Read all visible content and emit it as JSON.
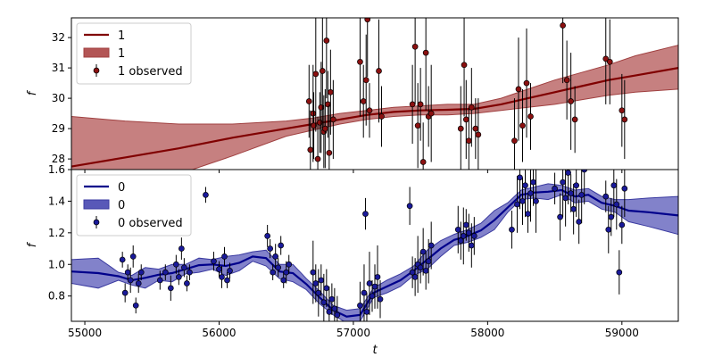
{
  "chart_data": [
    {
      "type": "line",
      "xlabel": "",
      "ylabel": "f",
      "xlim": [
        54900,
        59420
      ],
      "ylim": [
        27.65,
        32.65
      ],
      "yticks": [
        28,
        29,
        30,
        31,
        32
      ],
      "xticks": [
        55000,
        56000,
        57000,
        58000,
        59000
      ],
      "show_xtick_labels": false,
      "grid": false,
      "legend_position": "top-left",
      "colors": {
        "line": "#800000",
        "band_fill": "#b35555",
        "band_edge": "#a04040",
        "marker": "#8b1010"
      },
      "legend": [
        {
          "kind": "line",
          "label": "1"
        },
        {
          "kind": "band",
          "label": "1"
        },
        {
          "kind": "errorbar",
          "label": "1 observed"
        }
      ],
      "series": [
        {
          "name": "1",
          "kind": "line",
          "x": [
            54900,
            55300,
            55700,
            56100,
            56500,
            56700,
            56900,
            57100,
            57300,
            57500,
            57700,
            57900,
            58100,
            58300,
            58500,
            58700,
            58900,
            59100,
            59420
          ],
          "y": [
            27.75,
            28.05,
            28.35,
            28.7,
            29.0,
            29.15,
            29.3,
            29.45,
            29.55,
            29.6,
            29.62,
            29.65,
            29.8,
            30.0,
            30.2,
            30.4,
            30.6,
            30.75,
            31.0
          ]
        },
        {
          "name": "1",
          "kind": "band",
          "x": [
            54900,
            55300,
            55700,
            56100,
            56500,
            56700,
            56900,
            57100,
            57300,
            57500,
            57700,
            57900,
            58100,
            58300,
            58500,
            58700,
            58900,
            59100,
            59420
          ],
          "lower": [
            26.2,
            26.9,
            27.5,
            28.1,
            28.75,
            28.95,
            29.15,
            29.3,
            29.4,
            29.45,
            29.45,
            29.5,
            29.6,
            29.7,
            29.8,
            29.95,
            30.1,
            30.2,
            30.3
          ],
          "upper": [
            29.4,
            29.25,
            29.15,
            29.15,
            29.25,
            29.35,
            29.5,
            29.6,
            29.7,
            29.75,
            29.8,
            29.8,
            30.0,
            30.3,
            30.6,
            30.85,
            31.1,
            31.4,
            31.75
          ]
        },
        {
          "name": "1 observed",
          "kind": "errorbar",
          "x": [
            56670,
            56680,
            56700,
            56705,
            56720,
            56735,
            56750,
            56760,
            56770,
            56780,
            56790,
            56800,
            56810,
            56820,
            56830,
            56850,
            57050,
            57075,
            57095,
            57105,
            57120,
            57190,
            57210,
            57440,
            57460,
            57480,
            57500,
            57520,
            57540,
            57560,
            57580,
            57800,
            57825,
            57840,
            57860,
            57880,
            57910,
            57930,
            58200,
            58230,
            58260,
            58290,
            58320,
            58560,
            58590,
            58620,
            58650,
            58880,
            58910,
            59000,
            59020
          ],
          "y": [
            29.9,
            28.3,
            29.5,
            29.1,
            30.8,
            28.0,
            29.2,
            29.7,
            30.9,
            28.9,
            29.0,
            31.9,
            29.8,
            28.2,
            30.2,
            29.3,
            31.2,
            29.9,
            30.6,
            32.6,
            29.6,
            30.9,
            29.4,
            29.8,
            31.7,
            29.1,
            29.8,
            27.9,
            31.5,
            29.4,
            29.5,
            29.0,
            31.1,
            29.3,
            28.6,
            29.7,
            29.0,
            28.8,
            28.6,
            30.3,
            29.1,
            30.5,
            29.4,
            32.4,
            30.6,
            29.9,
            29.3,
            31.3,
            31.2,
            29.6,
            29.3
          ],
          "err": [
            1.2,
            1.3,
            1.6,
            1.1,
            1.9,
            1.4,
            1.0,
            1.5,
            2.1,
            1.2,
            1.3,
            1.9,
            1.1,
            1.6,
            1.4,
            1.3,
            1.8,
            1.2,
            1.5,
            1.9,
            0.9,
            1.7,
            1.0,
            1.3,
            1.9,
            1.4,
            1.2,
            1.3,
            1.9,
            1.0,
            1.6,
            1.4,
            1.7,
            1.3,
            1.1,
            1.3,
            1.0,
            1.2,
            1.4,
            1.7,
            1.2,
            1.8,
            1.1,
            1.9,
            1.3,
            1.6,
            1.1,
            1.5,
            1.4,
            1.2,
            1.3
          ]
        }
      ]
    },
    {
      "type": "line",
      "xlabel": "t",
      "ylabel": "f",
      "xlim": [
        54900,
        59420
      ],
      "ylim": [
        0.64,
        1.6
      ],
      "yticks": [
        0.8,
        1.0,
        1.2,
        1.4,
        1.6
      ],
      "xticks": [
        55000,
        56000,
        57000,
        58000,
        59000
      ],
      "xtick_labels": [
        "55000",
        "56000",
        "57000",
        "58000",
        "59000"
      ],
      "ytick_labels": [
        "0.8",
        "1.0",
        "1.2",
        "1.4",
        "1.6"
      ],
      "ytick_labels_top": [
        "28",
        "29",
        "30",
        "31",
        "32"
      ],
      "grid": false,
      "legend_position": "top-left",
      "colors": {
        "line": "#00008b",
        "band_fill": "#5858b8",
        "band_edge": "#3a3aa0",
        "marker": "#1a1a9a"
      },
      "legend": [
        {
          "kind": "line",
          "label": "0"
        },
        {
          "kind": "band",
          "label": "0"
        },
        {
          "kind": "errorbar",
          "label": "0 observed"
        }
      ],
      "series": [
        {
          "name": "0",
          "kind": "line",
          "x": [
            54900,
            55100,
            55250,
            55350,
            55450,
            55550,
            55650,
            55750,
            55850,
            55950,
            56050,
            56150,
            56250,
            56350,
            56450,
            56550,
            56650,
            56750,
            56850,
            56950,
            57050,
            57150,
            57250,
            57350,
            57450,
            57550,
            57650,
            57750,
            57850,
            57950,
            58050,
            58150,
            58250,
            58350,
            58450,
            58550,
            58650,
            58750,
            58850,
            58950,
            59050,
            59200,
            59420
          ],
          "y": [
            0.955,
            0.945,
            0.925,
            0.9,
            0.915,
            0.935,
            0.945,
            0.97,
            0.995,
            1.0,
            0.99,
            1.01,
            1.05,
            1.04,
            0.955,
            0.945,
            0.875,
            0.79,
            0.71,
            0.67,
            0.68,
            0.82,
            0.86,
            0.9,
            0.96,
            1.03,
            1.1,
            1.155,
            1.18,
            1.215,
            1.28,
            1.36,
            1.44,
            1.455,
            1.46,
            1.47,
            1.43,
            1.44,
            1.39,
            1.37,
            1.34,
            1.33,
            1.31
          ]
        },
        {
          "name": "0",
          "kind": "band",
          "x": [
            54900,
            55100,
            55250,
            55350,
            55450,
            55550,
            55650,
            55750,
            55850,
            55950,
            56050,
            56150,
            56250,
            56350,
            56450,
            56550,
            56650,
            56750,
            56850,
            56950,
            57050,
            57150,
            57250,
            57350,
            57450,
            57550,
            57650,
            57750,
            57850,
            57950,
            58050,
            58150,
            58250,
            58350,
            58450,
            58550,
            58650,
            58750,
            58850,
            58950,
            59050,
            59200,
            59420
          ],
          "lower": [
            0.88,
            0.85,
            0.9,
            0.87,
            0.85,
            0.9,
            0.89,
            0.94,
            0.95,
            0.97,
            0.93,
            0.96,
            1.02,
            0.99,
            0.91,
            0.89,
            0.84,
            0.75,
            0.68,
            0.63,
            0.64,
            0.79,
            0.82,
            0.86,
            0.93,
            0.97,
            1.05,
            1.12,
            1.14,
            1.17,
            1.22,
            1.33,
            1.41,
            1.42,
            1.41,
            1.44,
            1.39,
            1.4,
            1.35,
            1.33,
            1.27,
            1.24,
            1.19
          ],
          "upper": [
            1.03,
            1.04,
            0.95,
            0.93,
            0.98,
            0.97,
            1.0,
            1.0,
            1.04,
            1.03,
            1.05,
            1.06,
            1.08,
            1.09,
            1.0,
            1.0,
            0.91,
            0.83,
            0.74,
            0.71,
            0.72,
            0.85,
            0.9,
            0.94,
            0.99,
            1.09,
            1.15,
            1.19,
            1.22,
            1.26,
            1.34,
            1.39,
            1.47,
            1.49,
            1.51,
            1.5,
            1.47,
            1.48,
            1.43,
            1.41,
            1.41,
            1.42,
            1.43
          ]
        },
        {
          "name": "0 observed",
          "kind": "errorbar",
          "x": [
            55280,
            55300,
            55320,
            55340,
            55360,
            55380,
            55400,
            55420,
            55560,
            55600,
            55640,
            55680,
            55700,
            55720,
            55740,
            55760,
            55780,
            55960,
            56000,
            56020,
            56040,
            56060,
            56080,
            56360,
            56380,
            56400,
            56420,
            56440,
            56460,
            56480,
            56500,
            56520,
            56700,
            56720,
            56740,
            56760,
            56780,
            56800,
            56820,
            56840,
            56860,
            56880,
            57050,
            57080,
            57100,
            57120,
            57140,
            57160,
            57180,
            57200,
            57440,
            57460,
            57480,
            57500,
            57520,
            57540,
            57560,
            57580,
            57780,
            57800,
            57820,
            57840,
            57860,
            57880,
            57900,
            58180,
            58220,
            58240,
            58260,
            58280,
            58300,
            58320,
            58340,
            58360,
            58500,
            58540,
            58560,
            58580,
            58600,
            58620,
            58640,
            58660,
            58680,
            58700,
            58720,
            58880,
            58900,
            58920,
            58940,
            58960,
            58980,
            59000,
            59020,
            55900,
            57090,
            57420
          ],
          "y": [
            1.03,
            0.82,
            0.95,
            0.9,
            1.05,
            0.74,
            0.88,
            0.95,
            0.9,
            0.95,
            0.85,
            1.0,
            0.92,
            1.1,
            0.98,
            0.88,
            0.95,
            1.02,
            0.97,
            0.92,
            1.05,
            0.9,
            0.96,
            1.18,
            1.1,
            0.95,
            1.05,
            0.98,
            1.12,
            0.9,
            0.95,
            1.0,
            0.95,
            0.88,
            0.82,
            0.9,
            0.76,
            0.85,
            0.7,
            0.78,
            0.72,
            0.68,
            0.74,
            0.82,
            0.7,
            0.88,
            0.8,
            0.86,
            0.92,
            0.78,
            0.95,
            0.92,
            1.0,
            0.98,
            1.08,
            0.96,
            1.02,
            1.12,
            1.22,
            1.15,
            1.18,
            1.25,
            1.2,
            1.12,
            1.18,
            1.22,
            1.38,
            1.55,
            1.4,
            1.5,
            1.32,
            1.45,
            1.52,
            1.4,
            1.48,
            1.3,
            1.52,
            1.42,
            1.58,
            1.45,
            1.35,
            1.5,
            1.27,
            1.44,
            1.6,
            1.43,
            1.22,
            1.3,
            1.5,
            1.38,
            0.95,
            1.25,
            1.48,
            1.44,
            1.32,
            1.37
          ],
          "err": [
            0.05,
            0.06,
            0.05,
            0.08,
            0.07,
            0.05,
            0.06,
            0.05,
            0.06,
            0.05,
            0.08,
            0.06,
            0.05,
            0.07,
            0.06,
            0.05,
            0.05,
            0.06,
            0.05,
            0.07,
            0.06,
            0.05,
            0.05,
            0.07,
            0.06,
            0.05,
            0.08,
            0.06,
            0.06,
            0.05,
            0.07,
            0.06,
            0.2,
            0.12,
            0.15,
            0.1,
            0.18,
            0.12,
            0.16,
            0.1,
            0.13,
            0.12,
            0.15,
            0.18,
            0.12,
            0.2,
            0.1,
            0.14,
            0.2,
            0.12,
            0.1,
            0.12,
            0.18,
            0.1,
            0.15,
            0.12,
            0.14,
            0.15,
            0.15,
            0.12,
            0.18,
            0.1,
            0.12,
            0.14,
            0.12,
            0.12,
            0.18,
            0.2,
            0.15,
            0.2,
            0.12,
            0.18,
            0.15,
            0.2,
            0.1,
            0.15,
            0.22,
            0.18,
            0.2,
            0.12,
            0.16,
            0.2,
            0.14,
            0.18,
            0.22,
            0.1,
            0.15,
            0.12,
            0.2,
            0.16,
            0.14,
            0.12,
            0.18,
            0.05,
            0.1,
            0.12
          ]
        }
      ]
    }
  ]
}
